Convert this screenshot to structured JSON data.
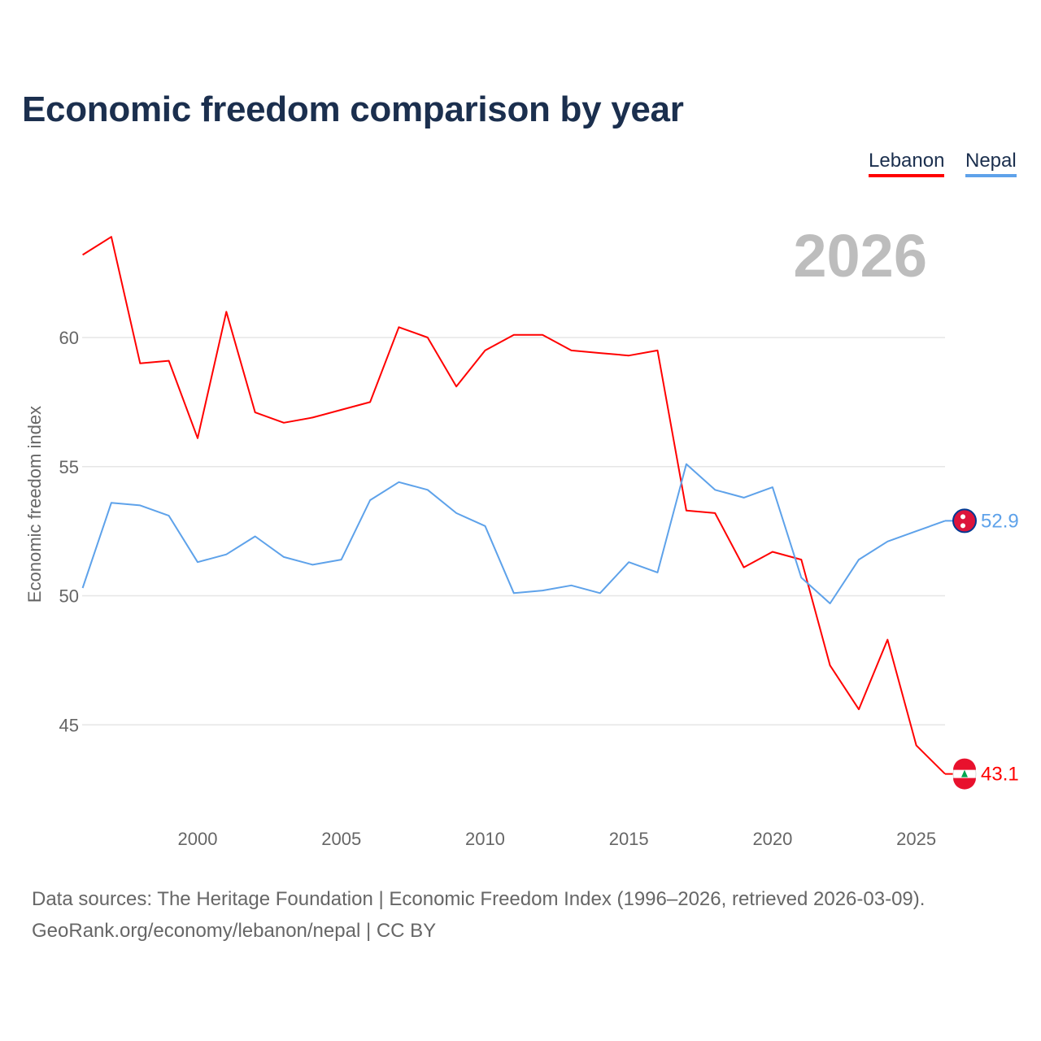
{
  "chart_data": {
    "type": "line",
    "title": "Economic freedom comparison by year",
    "xlabel": "",
    "ylabel": "Economic freedom index",
    "year_overlay": "2026",
    "xlim": [
      1996,
      2026
    ],
    "ylim": [
      42,
      64
    ],
    "grid": true,
    "legend_placement": "top-right",
    "x_ticks": [
      "2000",
      "2005",
      "2010",
      "2015",
      "2020",
      "2025"
    ],
    "y_ticks": [
      "45",
      "50",
      "55",
      "60"
    ],
    "x": [
      1996,
      1997,
      1998,
      1999,
      2000,
      2001,
      2002,
      2003,
      2004,
      2005,
      2006,
      2007,
      2008,
      2009,
      2010,
      2011,
      2012,
      2013,
      2014,
      2015,
      2016,
      2017,
      2018,
      2019,
      2020,
      2021,
      2022,
      2023,
      2024,
      2025,
      2026
    ],
    "series": [
      {
        "name": "Lebanon",
        "color": "#ff0000",
        "end_label": "43.1",
        "values": [
          63.2,
          63.9,
          59.0,
          59.1,
          56.1,
          61.0,
          57.1,
          56.7,
          56.9,
          57.2,
          57.5,
          60.4,
          60.0,
          58.1,
          59.5,
          60.1,
          60.1,
          59.5,
          59.4,
          59.3,
          59.5,
          53.3,
          53.2,
          51.1,
          51.7,
          51.4,
          47.3,
          45.6,
          48.3,
          44.2,
          43.1
        ]
      },
      {
        "name": "Nepal",
        "color": "#5ea2ea",
        "end_label": "52.9",
        "values": [
          50.3,
          53.6,
          53.5,
          53.1,
          51.3,
          51.6,
          52.3,
          51.5,
          51.2,
          51.4,
          53.7,
          54.4,
          54.1,
          53.2,
          52.7,
          50.1,
          50.2,
          50.4,
          50.1,
          51.3,
          50.9,
          55.1,
          54.1,
          53.8,
          54.2,
          50.7,
          49.7,
          51.4,
          52.1,
          52.5,
          52.9
        ]
      }
    ]
  },
  "footer": {
    "line1": "Data sources: The Heritage Foundation | Economic Freedom Index (1996–2026, retrieved 2026-03-09).",
    "line2": "GeoRank.org/economy/lebanon/nepal | CC BY"
  }
}
